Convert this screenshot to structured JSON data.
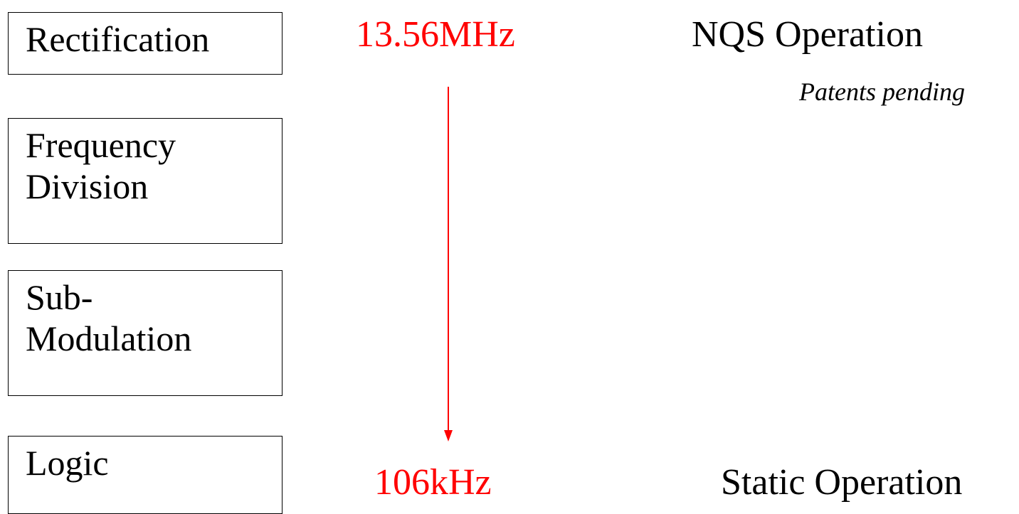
{
  "boxes": {
    "rectification": "Rectification",
    "frequency_division": "Frequency\nDivision",
    "sub_modulation": "Sub-\nModulation",
    "logic": "Logic"
  },
  "frequencies": {
    "top": "13.56MHz",
    "bottom": "106kHz"
  },
  "operations": {
    "top": "NQS Operation",
    "top_note": "Patents pending",
    "bottom": "Static Operation"
  },
  "colors": {
    "frequency_text": "#ff0000",
    "arrow": "#ff0000",
    "box_border": "#000000"
  },
  "icons": {
    "arrow": "down-arrow"
  }
}
